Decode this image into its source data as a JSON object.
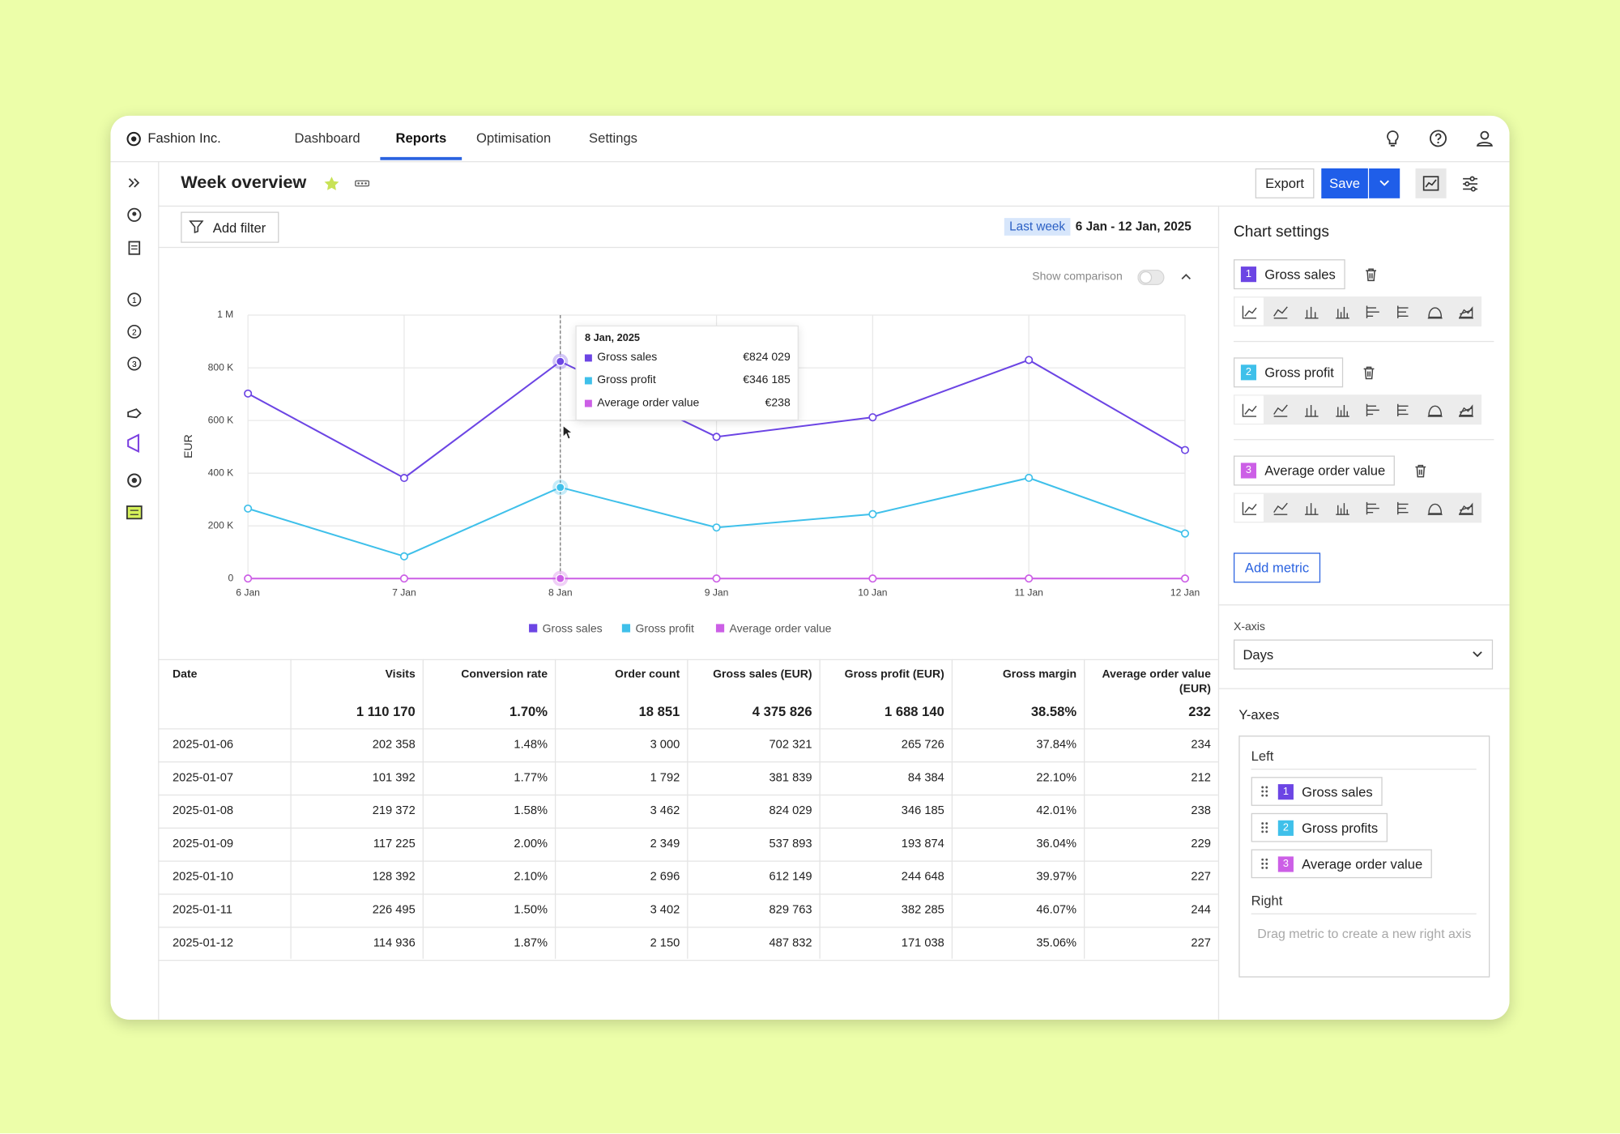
{
  "nav": {
    "brand": "Fashion Inc.",
    "items": [
      "Dashboard",
      "Reports",
      "Optimisation",
      "Settings"
    ]
  },
  "header": {
    "title": "Week overview",
    "export": "Export",
    "save": "Save"
  },
  "filter": {
    "add_filter": "Add filter",
    "period": "Last week",
    "range": "6 Jan - 12 Jan, 2025"
  },
  "chart_controls": {
    "show_comparison": "Show comparison"
  },
  "chart_data": {
    "type": "line",
    "y_label": "EUR",
    "categories": [
      "6 Jan",
      "7 Jan",
      "8 Jan",
      "9 Jan",
      "10 Jan",
      "11 Jan",
      "12 Jan"
    ],
    "series": [
      {
        "name": "Gross sales",
        "color": "#6c45e4",
        "values": [
          702321,
          381839,
          824029,
          537893,
          612149,
          829763,
          487832
        ]
      },
      {
        "name": "Gross profit",
        "color": "#3fc0ea",
        "values": [
          265726,
          84384,
          346185,
          193874,
          244648,
          382285,
          171038
        ]
      },
      {
        "name": "Average order value",
        "color": "#cc5fe6",
        "values": [
          234,
          212,
          238,
          229,
          227,
          244,
          227
        ]
      }
    ],
    "ylim": [
      0,
      1000000
    ],
    "yticks": [
      0,
      {
        "value": 200000,
        "label": "200 K"
      },
      {
        "value": 400000,
        "label": "400 K"
      },
      {
        "value": 600000,
        "label": "600 K"
      },
      {
        "value": 800000,
        "label": "800 K"
      },
      {
        "value": 1000000,
        "label": "1 M"
      }
    ],
    "grid": true,
    "legend": "bottom"
  },
  "tooltip": {
    "title": "8 Jan, 2025",
    "values": [
      "€824 029",
      "€346 185",
      "€238"
    ]
  },
  "table": {
    "headers": [
      "Date",
      "Visits",
      "Conversion rate",
      "Order count",
      "Gross sales (EUR)",
      "Gross profit (EUR)",
      "Gross margin",
      "Average order value (EUR)"
    ],
    "totals": [
      "1 110 170",
      "1.70%",
      "18 851",
      "4 375 826",
      "1 688 140",
      "38.58%",
      "232"
    ],
    "rows": [
      [
        "2025-01-06",
        "202 358",
        "1.48%",
        "3 000",
        "702 321",
        "265 726",
        "37.84%",
        "234"
      ],
      [
        "2025-01-07",
        "101 392",
        "1.77%",
        "1 792",
        "381 839",
        "84 384",
        "22.10%",
        "212"
      ],
      [
        "2025-01-08",
        "219 372",
        "1.58%",
        "3 462",
        "824 029",
        "346 185",
        "42.01%",
        "238"
      ],
      [
        "2025-01-09",
        "117 225",
        "2.00%",
        "2 349",
        "537 893",
        "193 874",
        "36.04%",
        "229"
      ],
      [
        "2025-01-10",
        "128 392",
        "2.10%",
        "2 696",
        "612 149",
        "244 648",
        "39.97%",
        "227"
      ],
      [
        "2025-01-11",
        "226 495",
        "1.50%",
        "3 402",
        "829 763",
        "382 285",
        "46.07%",
        "244"
      ],
      [
        "2025-01-12",
        "114 936",
        "1.87%",
        "2 150",
        "487 832",
        "171 038",
        "35.06%",
        "227"
      ]
    ]
  },
  "settings": {
    "title": "Chart settings",
    "metrics": [
      {
        "number": "1",
        "name": "Gross sales"
      },
      {
        "number": "2",
        "name": "Gross profit"
      },
      {
        "number": "3",
        "name": "Average order value"
      }
    ],
    "add_metric": "Add metric",
    "x_axis_label": "X-axis",
    "x_axis_value": "Days",
    "y_axes_label": "Y-axes",
    "left_label": "Left",
    "left_metrics": [
      {
        "number": "1",
        "name": "Gross sales"
      },
      {
        "number": "2",
        "name": "Gross profits"
      },
      {
        "number": "3",
        "name": "Average order value"
      }
    ],
    "right_label": "Right",
    "right_placeholder": "Drag metric to create a new right axis"
  }
}
